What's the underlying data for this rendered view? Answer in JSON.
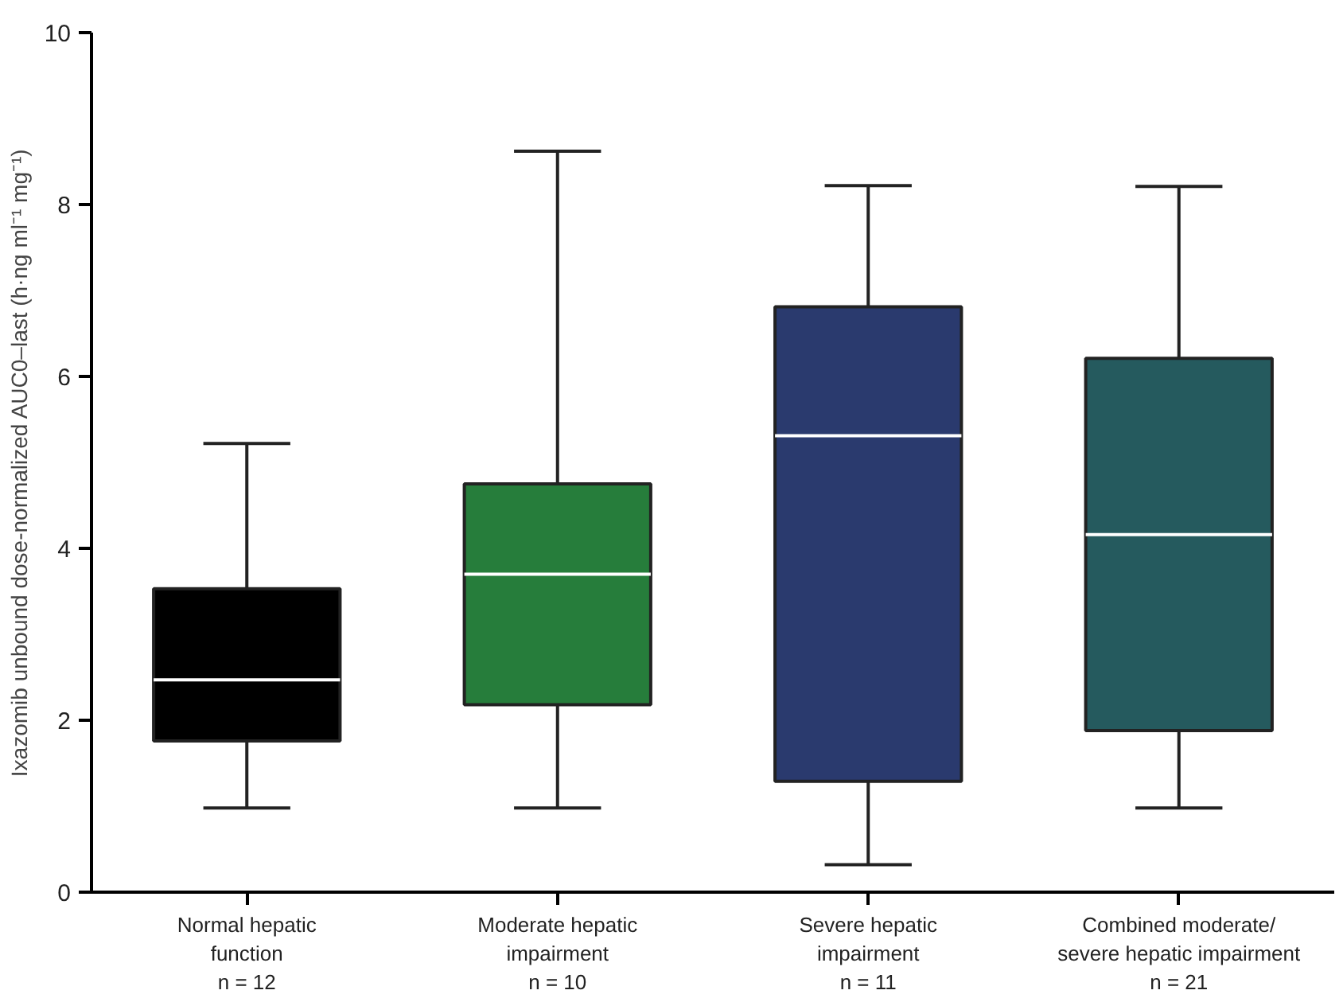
{
  "chart_data": {
    "type": "box",
    "ylabel": "Ixazomib unbound dose-normalized AUC0–last (h·ng ml⁻¹ mg⁻¹)",
    "categories": [
      "Normal hepatic\nfunction\nn = 12",
      "Moderate hepatic\nimpairment\nn = 10",
      "Severe hepatic\nimpairment\nn = 11",
      "Combined moderate/\nsevere hepatic impairment\nn = 21"
    ],
    "colors": [
      "#000000",
      "#267d3b",
      "#2a3a6e",
      "#255a5e"
    ],
    "boxes": [
      {
        "low": 0.98,
        "q1": 1.76,
        "median": 2.47,
        "q3": 3.53,
        "high": 5.22
      },
      {
        "low": 0.98,
        "q1": 2.18,
        "median": 3.7,
        "q3": 4.75,
        "high": 8.62
      },
      {
        "low": 0.32,
        "q1": 1.29,
        "median": 5.31,
        "q3": 6.81,
        "high": 8.22
      },
      {
        "low": 0.98,
        "q1": 1.88,
        "median": 4.16,
        "q3": 6.21,
        "high": 8.21
      }
    ],
    "ylim": [
      0,
      10
    ],
    "yticks": [
      0,
      2,
      4,
      6,
      8,
      10
    ],
    "grid": false
  }
}
